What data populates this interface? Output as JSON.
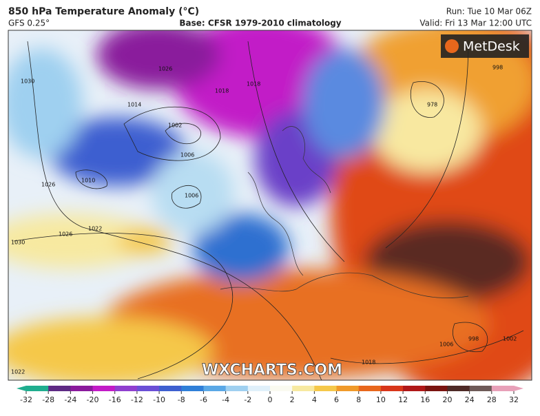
{
  "header": {
    "title": "850 hPa Temperature Anomaly (°C)",
    "model": "GFS 0.25°",
    "base": "Base: CFSR 1979-2010 climatology",
    "run": "Run: Tue 10 Mar 06Z",
    "valid": "Valid: Fri 13 Mar 12:00 UTC"
  },
  "logo": "MetDesk",
  "watermark": "WXCHARTS.COM",
  "isobar_labels": [
    "1030",
    "1026",
    "1022",
    "1030",
    "1026",
    "1014",
    "1002",
    "1006",
    "1010",
    "1006",
    "1026",
    "1018",
    "1018",
    "998",
    "978",
    "1006",
    "998",
    "1002",
    "1018",
    "1022"
  ],
  "colorbar": {
    "ticks": [
      -32,
      -28,
      -24,
      -20,
      -16,
      -12,
      -10,
      -8,
      -6,
      -4,
      -2,
      0,
      2,
      4,
      6,
      8,
      10,
      12,
      16,
      20,
      24,
      28,
      32
    ],
    "colors": [
      "#1fae8f",
      "#5e2a84",
      "#8a1a9c",
      "#c21bc7",
      "#8f3fcf",
      "#6a4fd6",
      "#3d5fd0",
      "#2f7fd8",
      "#5aa8e6",
      "#9fd0f0",
      "#e0f0fa",
      "#fafaf0",
      "#f7e9a0",
      "#f5c84a",
      "#f09a2a",
      "#e8671c",
      "#d8361a",
      "#b01818",
      "#7a1410",
      "#4e2a26",
      "#6e5a58",
      "#e8a0b8"
    ]
  }
}
